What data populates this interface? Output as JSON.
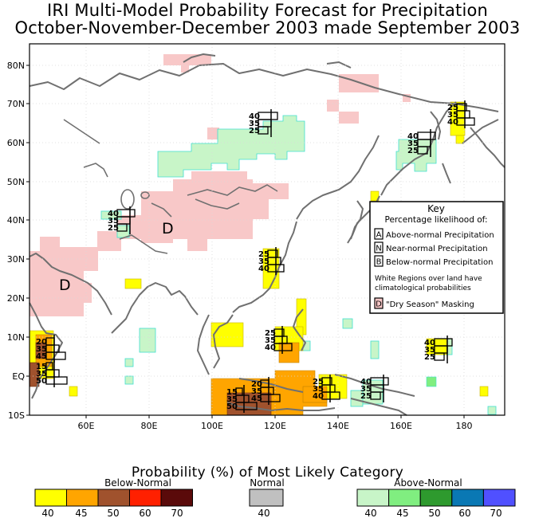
{
  "title_line1": "IRI Multi-Model Probability Forecast for Precipitation",
  "title_line2": "October-November-December 2003 made September 2003",
  "lat_labels": [
    "80N",
    "70N",
    "60N",
    "50N",
    "40N",
    "30N",
    "20N",
    "10N",
    "EQ",
    "10S"
  ],
  "lon_labels": [
    "60E",
    "80E",
    "100E",
    "120E",
    "140E",
    "160E",
    "180"
  ],
  "key": {
    "title": "Key",
    "subtitle": "Percentage likelihood of:",
    "rows": [
      {
        "letter": "A",
        "text": "Above-normal Precipitation"
      },
      {
        "letter": "N",
        "text": "Near-normal Precipitation"
      },
      {
        "letter": "B",
        "text": "Below-normal Precipitation"
      }
    ],
    "note_line1": "White Regions over land have",
    "note_line2": "climatological probabilities",
    "dry_letter": "D",
    "dry_text": "\"Dry Season\" Masking"
  },
  "dry_markers": [
    "D",
    "D"
  ],
  "probability_boxes": [
    {
      "values": [
        "40",
        "35",
        "25"
      ]
    },
    {
      "values": [
        "40",
        "35",
        "25"
      ]
    },
    {
      "values": [
        "40",
        "35",
        "25"
      ]
    },
    {
      "values": [
        "25",
        "35",
        "40"
      ]
    },
    {
      "values": [
        "25",
        "35",
        "40"
      ]
    },
    {
      "values": [
        "25",
        "35",
        "40"
      ]
    },
    {
      "values": [
        "20",
        "35",
        "45"
      ]
    },
    {
      "values": [
        "15",
        "35",
        "50"
      ]
    },
    {
      "values": [
        "25",
        "35",
        "40"
      ]
    },
    {
      "values": [
        "40",
        "35",
        "25"
      ]
    },
    {
      "values": [
        "40",
        "35",
        "25"
      ]
    },
    {
      "values": [
        "20",
        "35",
        "45"
      ]
    },
    {
      "values": [
        "15",
        "35",
        "50"
      ]
    }
  ],
  "colorbar": {
    "title": "Probability (%) of Most Likely Category",
    "below": {
      "label": "Below-Normal",
      "colors": [
        "#ffff00",
        "#ffa500",
        "#a0522d",
        "#ff2000",
        "#5a0a0a"
      ],
      "ticks": [
        "40",
        "45",
        "50",
        "60",
        "70"
      ]
    },
    "normal": {
      "label": "Normal",
      "colors": [
        "#c0c0c0"
      ],
      "ticks": [
        "40"
      ]
    },
    "above": {
      "label": "Above-Normal",
      "colors": [
        "#c8f5c8",
        "#80ee80",
        "#2e9a2e",
        "#0a78b4",
        "#5050ff"
      ],
      "ticks": [
        "40",
        "45",
        "50",
        "60",
        "70"
      ]
    }
  },
  "colors": {
    "dry_mask": "#f8c8c8",
    "coast": "#707070"
  }
}
